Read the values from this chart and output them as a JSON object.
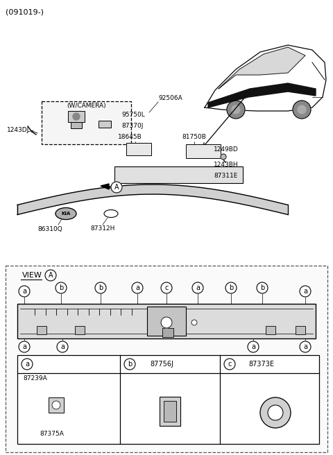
{
  "title": "(091019-)",
  "bg_color": "#ffffff",
  "line_color": "#000000",
  "text_color": "#000000",
  "part_numbers": {
    "top_left": "1243DJ",
    "camera_box_title": "(W/CAMERA)",
    "camera_part1": "95750L",
    "camera_part2": "87370J",
    "top_center1": "92506A",
    "top_center2": "18645B",
    "top_center3": "81750B",
    "top_center4": "1249BD",
    "mid1": "1243BH",
    "mid2": "87311E",
    "spoiler_left": "86310Q",
    "spoiler_right": "87312H",
    "legend_a_part1": "87239A",
    "legend_a_part2": "87375A",
    "legend_b": "87756J",
    "legend_c": "87373E"
  }
}
